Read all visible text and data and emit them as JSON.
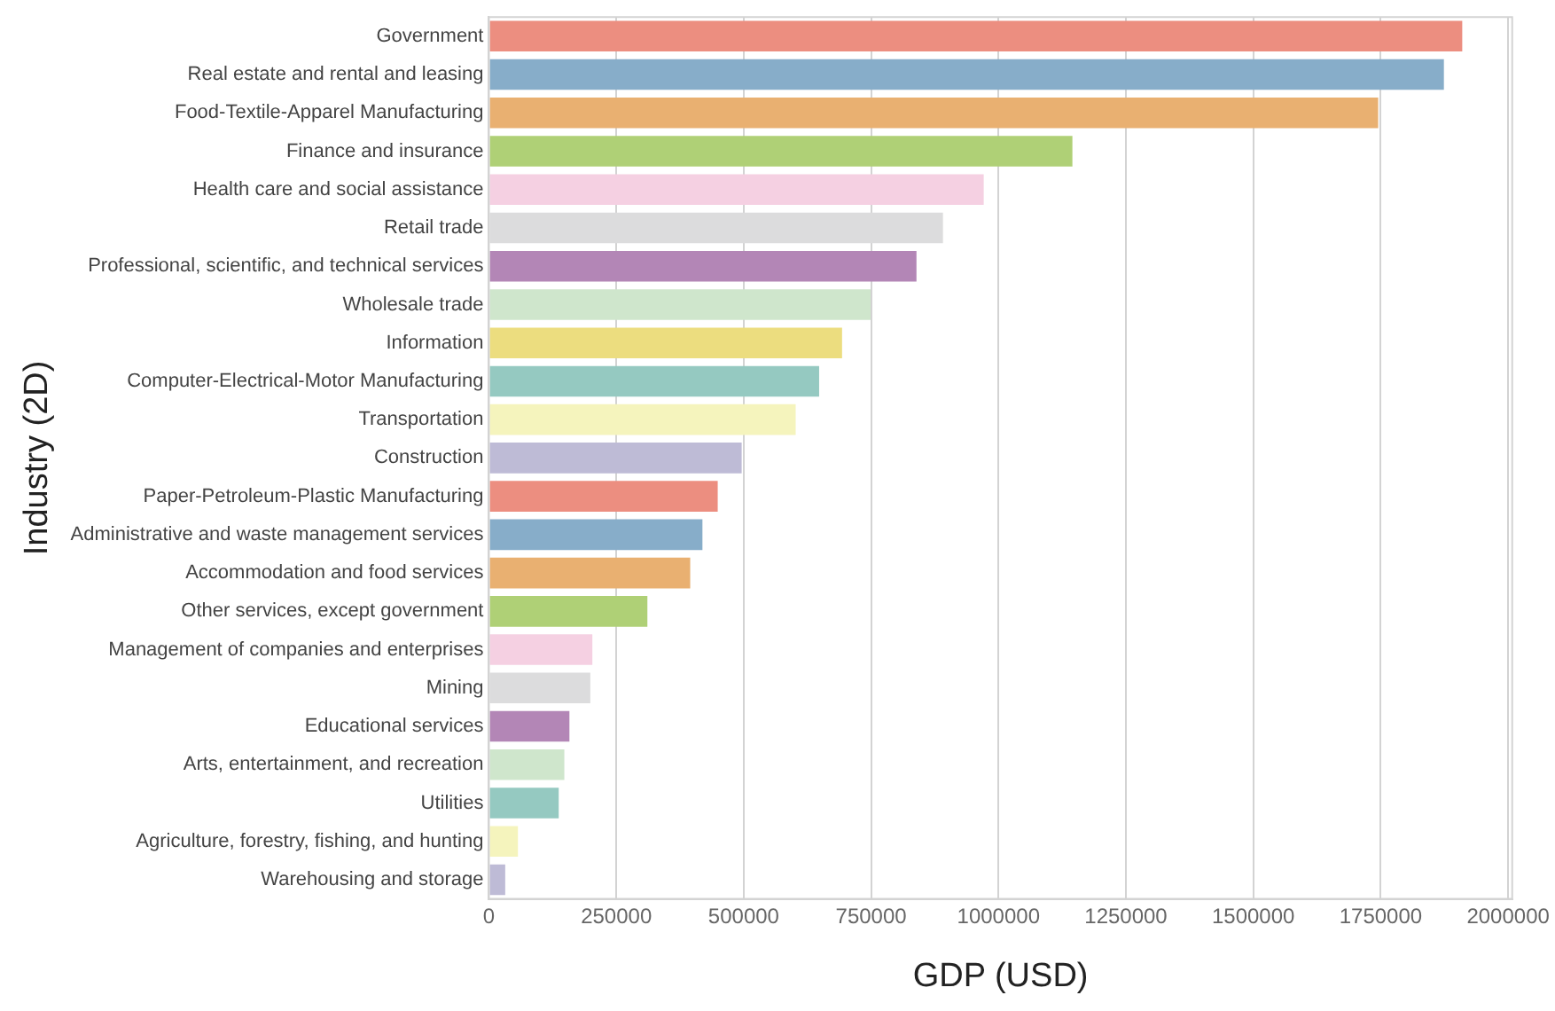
{
  "chart_data": {
    "type": "bar",
    "orientation": "horizontal",
    "xlabel": "GDP (USD)",
    "ylabel": "Industry (2D)",
    "categories": [
      "Government",
      "Real estate and rental and leasing",
      "Food-Textile-Apparel Manufacturing",
      "Finance and insurance",
      "Health care and social assistance",
      "Retail trade",
      "Professional, scientific, and technical services",
      "Wholesale trade",
      "Information",
      "Computer-Electrical-Motor Manufacturing",
      "Transportation",
      "Construction",
      "Paper-Petroleum-Plastic Manufacturing",
      "Administrative and waste management services",
      "Accommodation and food services",
      "Other services, except government",
      "Management of companies and enterprises",
      "Mining",
      "Educational services",
      "Arts, entertainment, and recreation",
      "Utilities",
      "Agriculture, forestry, fishing, and hunting",
      "Warehousing and storage"
    ],
    "values": [
      1910000,
      1874000,
      1745000,
      1145000,
      971000,
      891000,
      839000,
      749000,
      693000,
      648000,
      602000,
      496000,
      449000,
      419000,
      395000,
      311000,
      203000,
      199000,
      158000,
      148000,
      137000,
      57000,
      32000
    ],
    "colors": [
      "#ec8e80",
      "#87adc9",
      "#e9b071",
      "#afd076",
      "#f5d0e2",
      "#dcdcdd",
      "#b386b6",
      "#cfe6cc",
      "#ecdd7f",
      "#95c9c1",
      "#f5f4bd",
      "#bebbd6",
      "#ec8e80",
      "#87adc9",
      "#e9b071",
      "#afd076",
      "#f5d0e2",
      "#dcdcdd",
      "#b386b6",
      "#cfe6cc",
      "#95c9c1",
      "#f5f4bd",
      "#bebbd6"
    ],
    "xlim": [
      0,
      2008000
    ],
    "xticks": [
      0,
      250000,
      500000,
      750000,
      1000000,
      1250000,
      1500000,
      1750000,
      2000000
    ],
    "grid": "x",
    "legend": false
  }
}
